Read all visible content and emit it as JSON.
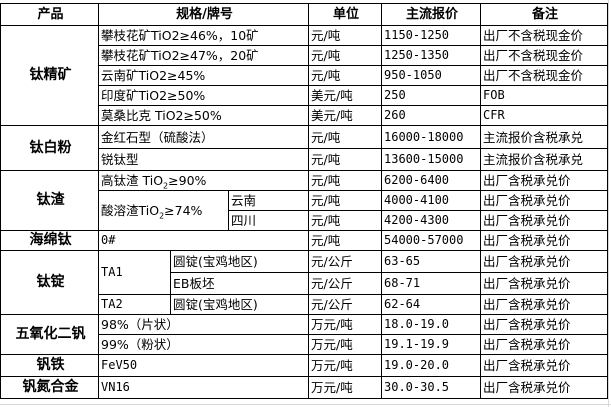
{
  "headers": {
    "product": "产品",
    "spec": "规格/牌号",
    "unit": "单位",
    "price": "主流报价",
    "note": "备注"
  },
  "products": {
    "titanium_concentrate": "钛精矿",
    "titanium_dioxide": "钛白粉",
    "titanium_slag": "钛渣",
    "sponge_titanium": "海绵钛",
    "titanium_ingot": "钛锭",
    "vanadium_pentoxide": "五氧化二钒",
    "ferrovanadium": "钒铁",
    "vanadium_nitrogen": "钒氮合金"
  },
  "rows": [
    {
      "spec": "攀枝花矿TiO2≥46%，10矿",
      "unit": "元/吨",
      "price": "1150-1250",
      "note": "出厂不含税现金价"
    },
    {
      "spec": "攀枝花矿TiO2≥47%，20矿",
      "unit": "元/吨",
      "price": "1250-1350",
      "note": "出厂不含税现金价"
    },
    {
      "spec": "云南矿TiO2≥45%",
      "unit": "元/吨",
      "price": "950-1050",
      "note": "出厂不含税现金价"
    },
    {
      "spec": "印度矿TiO2≥50%",
      "unit": "美元/吨",
      "price": "250",
      "note": "FOB"
    },
    {
      "spec": "莫桑比克 TiO2≥50%",
      "unit": "美元/吨",
      "price": "260",
      "note": "CFR"
    },
    {
      "spec": "金红石型（硫酸法）",
      "unit": "元/吨",
      "price": "16000-18000",
      "note": "主流报价含税承兑"
    },
    {
      "spec": "锐钛型",
      "unit": "元/吨",
      "price": "13600-15000",
      "note": "主流报价含税承兑"
    },
    {
      "spec_main": "高钛渣 TiO",
      "spec_sub": "2",
      "spec_tail": "≥90%",
      "unit": "元/吨",
      "price": "6200-6400",
      "note": "出厂含税承兑价"
    },
    {
      "spec_main": "酸溶渣TiO",
      "spec_sub": "2",
      "spec_tail": "≥74%",
      "region": "云南",
      "unit": "元/吨",
      "price": "4000-4100",
      "note": "出厂含税承兑价"
    },
    {
      "region": "四川",
      "unit": "元/吨",
      "price": "4200-4300",
      "note": "出厂含税承兑价"
    },
    {
      "spec": "0#",
      "unit": "元/吨",
      "price": "54000-57000",
      "note": "出厂含税承兑价"
    },
    {
      "grade": "TA1",
      "spec": "圆锭(宝鸡地区)",
      "unit": "元/公斤",
      "price": "63-65",
      "note": "出厂含税承兑价"
    },
    {
      "spec": "EB板坯",
      "unit": "元/公斤",
      "price": "68-71",
      "note": "出厂含税承兑价"
    },
    {
      "grade": "TA2",
      "spec": "圆锭(宝鸡地区)",
      "unit": "元/公斤",
      "price": "62-64",
      "note": "出厂含税承兑价"
    },
    {
      "spec": "98%（片状）",
      "unit": "万元/吨",
      "price": "18.0-19.0",
      "note": "出厂含税承兑价"
    },
    {
      "spec": "99%（粉状）",
      "unit": "万元/吨",
      "price": "19.1-19.9",
      "note": "出厂含税承兑价"
    },
    {
      "spec": "FeV50",
      "unit": "万元/吨",
      "price": "19.0-20.0",
      "note": "出厂含税承兑价"
    },
    {
      "spec": "VN16",
      "unit": "万元/吨",
      "price": "30.0-30.5",
      "note": "出厂含税承兑价"
    }
  ]
}
